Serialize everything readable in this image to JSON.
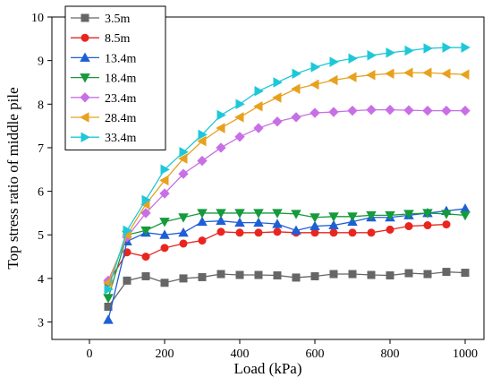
{
  "chart_data": {
    "type": "line",
    "title": "",
    "xlabel": "Load (kPa)",
    "ylabel": "Top stress ratio of middle pile",
    "xlim": [
      -100,
      1050
    ],
    "ylim": [
      2.6,
      10
    ],
    "xticks": [
      0,
      200,
      400,
      600,
      800,
      1000
    ],
    "yticks": [
      3,
      4,
      5,
      6,
      7,
      8,
      9,
      10
    ],
    "grid": false,
    "legend_position": "top-left",
    "x": [
      50,
      100,
      150,
      200,
      250,
      300,
      350,
      400,
      450,
      500,
      550,
      600,
      650,
      700,
      750,
      800,
      850,
      900,
      950,
      1000
    ],
    "series": [
      {
        "name": "3.5m",
        "color": "#666666",
        "marker": "square",
        "x": [
          50,
          100,
          150,
          200,
          250,
          300,
          350,
          400,
          450,
          500,
          550,
          600,
          650,
          700,
          750,
          800,
          850,
          900,
          950,
          1000
        ],
        "values": [
          3.35,
          3.95,
          4.05,
          3.9,
          4.0,
          4.03,
          4.1,
          4.08,
          4.08,
          4.07,
          4.02,
          4.05,
          4.1,
          4.1,
          4.08,
          4.07,
          4.12,
          4.1,
          4.15,
          4.13
        ]
      },
      {
        "name": "8.5m",
        "color": "#e8251e",
        "marker": "circle",
        "x": [
          50,
          100,
          150,
          200,
          250,
          300,
          350,
          400,
          450,
          500,
          550,
          600,
          650,
          700,
          750,
          800,
          850,
          900,
          950
        ],
        "values": [
          3.9,
          4.6,
          4.5,
          4.7,
          4.8,
          4.87,
          5.07,
          5.05,
          5.05,
          5.07,
          5.05,
          5.05,
          5.05,
          5.05,
          5.05,
          5.12,
          5.2,
          5.22,
          5.24
        ]
      },
      {
        "name": "13.4m",
        "color": "#1f5fd6",
        "marker": "triangle-up",
        "x": [
          50,
          100,
          150,
          200,
          250,
          300,
          350,
          400,
          450,
          500,
          550,
          600,
          650,
          700,
          750,
          800,
          850,
          900,
          950,
          1000
        ],
        "values": [
          3.05,
          4.85,
          5.05,
          5.0,
          5.05,
          5.3,
          5.32,
          5.28,
          5.28,
          5.25,
          5.1,
          5.2,
          5.22,
          5.3,
          5.4,
          5.4,
          5.45,
          5.5,
          5.55,
          5.6
        ]
      },
      {
        "name": "18.4m",
        "color": "#159a3c",
        "marker": "triangle-down",
        "x": [
          50,
          100,
          150,
          200,
          250,
          300,
          350,
          400,
          450,
          500,
          550,
          600,
          650,
          700,
          750,
          800,
          850,
          900,
          950,
          1000
        ],
        "values": [
          3.55,
          5.0,
          5.1,
          5.3,
          5.4,
          5.5,
          5.5,
          5.5,
          5.5,
          5.5,
          5.48,
          5.4,
          5.42,
          5.42,
          5.45,
          5.45,
          5.48,
          5.5,
          5.48,
          5.45
        ]
      },
      {
        "name": "23.4m",
        "color": "#c86fe6",
        "marker": "diamond",
        "x": [
          50,
          100,
          150,
          200,
          250,
          300,
          350,
          400,
          450,
          500,
          550,
          600,
          650,
          700,
          750,
          800,
          850,
          900,
          950,
          1000
        ],
        "values": [
          3.95,
          4.95,
          5.5,
          5.95,
          6.4,
          6.7,
          7.0,
          7.25,
          7.45,
          7.6,
          7.7,
          7.8,
          7.82,
          7.85,
          7.87,
          7.87,
          7.86,
          7.85,
          7.85,
          7.85
        ]
      },
      {
        "name": "28.4m",
        "color": "#e8a11e",
        "marker": "triangle-left",
        "x": [
          50,
          100,
          150,
          200,
          250,
          300,
          350,
          400,
          450,
          500,
          550,
          600,
          650,
          700,
          750,
          800,
          850,
          900,
          950,
          1000
        ],
        "values": [
          3.9,
          5.0,
          5.7,
          6.25,
          6.75,
          7.15,
          7.45,
          7.7,
          7.95,
          8.15,
          8.35,
          8.45,
          8.55,
          8.62,
          8.67,
          8.7,
          8.72,
          8.72,
          8.7,
          8.68
        ]
      },
      {
        "name": "33.4m",
        "color": "#1ec8d8",
        "marker": "triangle-right",
        "x": [
          50,
          100,
          150,
          200,
          250,
          300,
          350,
          400,
          450,
          500,
          550,
          600,
          650,
          700,
          750,
          800,
          850,
          900,
          950,
          1000
        ],
        "values": [
          3.75,
          5.1,
          5.8,
          6.5,
          6.9,
          7.3,
          7.75,
          8.0,
          8.3,
          8.5,
          8.7,
          8.85,
          8.97,
          9.05,
          9.12,
          9.18,
          9.23,
          9.28,
          9.3,
          9.3
        ]
      }
    ]
  }
}
